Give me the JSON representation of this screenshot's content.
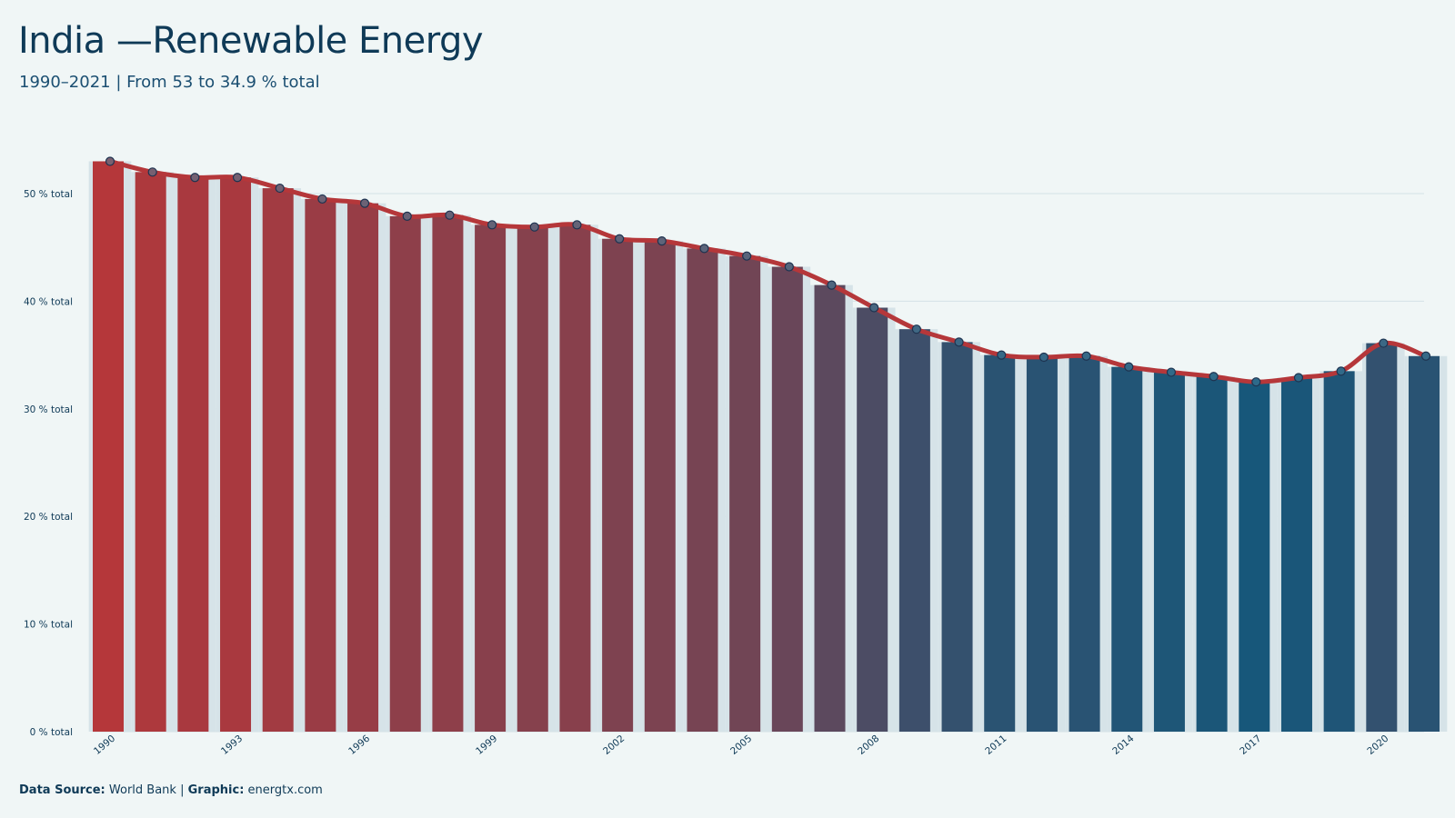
{
  "chart_data": {
    "type": "bar",
    "title": "India —Renewable Energy",
    "subtitle": "1990–2021 | From 53 to 34.9 % total",
    "x": [
      1990,
      1991,
      1992,
      1993,
      1994,
      1995,
      1996,
      1997,
      1998,
      1999,
      2000,
      2001,
      2002,
      2003,
      2004,
      2005,
      2006,
      2007,
      2008,
      2009,
      2010,
      2011,
      2012,
      2013,
      2014,
      2015,
      2016,
      2017,
      2018,
      2019,
      2020,
      2021
    ],
    "values": [
      53.0,
      52.0,
      51.5,
      51.5,
      50.5,
      49.5,
      49.1,
      47.9,
      48.0,
      47.1,
      46.9,
      47.1,
      45.8,
      45.6,
      44.9,
      44.2,
      43.2,
      41.5,
      39.4,
      37.4,
      36.2,
      35.0,
      34.8,
      34.9,
      33.9,
      33.4,
      33.0,
      32.5,
      32.9,
      33.5,
      36.1,
      34.9
    ],
    "line_values": [
      53.0,
      52.0,
      51.5,
      51.5,
      50.5,
      49.5,
      49.1,
      47.9,
      48.0,
      47.1,
      46.9,
      47.1,
      45.8,
      45.6,
      44.9,
      44.2,
      43.2,
      41.5,
      39.4,
      37.4,
      36.2,
      35.0,
      34.8,
      34.9,
      33.9,
      33.4,
      33.0,
      32.5,
      32.9,
      33.5,
      36.1,
      34.9
    ],
    "x_tick_labels": [
      "1990",
      "1993",
      "1996",
      "1999",
      "2002",
      "2005",
      "2008",
      "2011",
      "2014",
      "2017",
      "2020"
    ],
    "y_tick_labels": [
      "0 % total",
      "10 % total",
      "20 % total",
      "30 % total",
      "40 % total",
      "50 % total"
    ],
    "ylim": [
      0,
      56
    ],
    "grid": true,
    "colors": {
      "high": "#b5373a",
      "low": "#17577a",
      "line": "#b5373a",
      "marker_fill": "#6a6a82",
      "marker_stroke": "#1e3350",
      "grid": "#d4e1e6"
    }
  },
  "footer": {
    "source_label": "Data Source:",
    "source_value": "World Bank",
    "separator": "|",
    "graphic_label": "Graphic:",
    "graphic_value": "energtx.com"
  }
}
